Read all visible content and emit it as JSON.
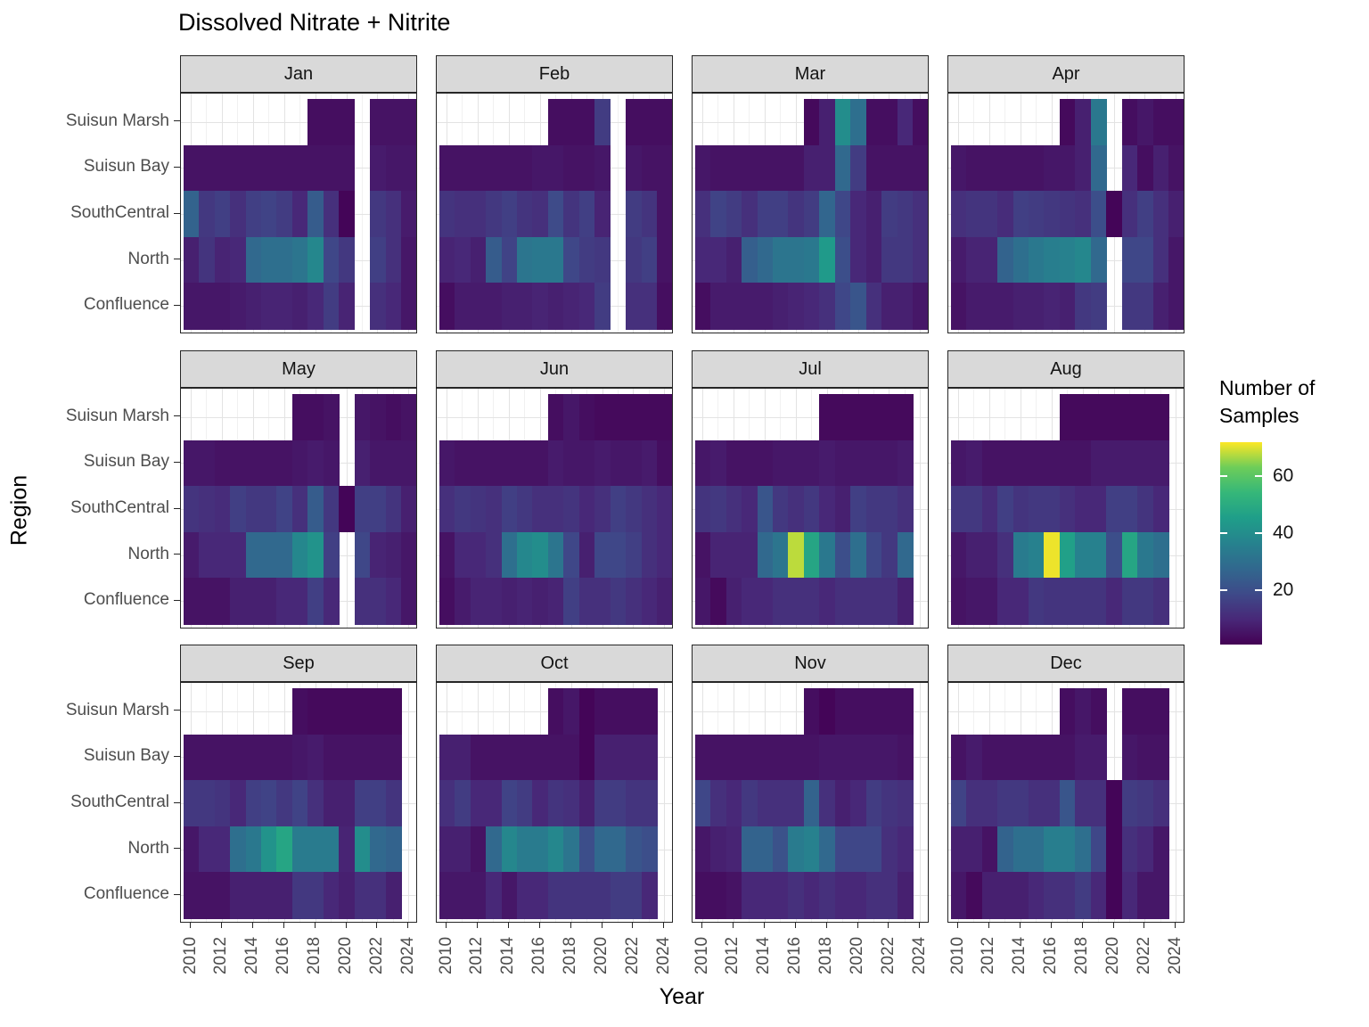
{
  "title": "Dissolved Nitrate + Nitrite",
  "axes": {
    "x_label": "Year",
    "y_label": "Region",
    "x_ticks": [
      2010,
      2012,
      2014,
      2016,
      2018,
      2020,
      2022,
      2024
    ],
    "y_categories": [
      "Suisun Marsh",
      "Suisun Bay",
      "SouthCentral",
      "North",
      "Confluence"
    ]
  },
  "legend": {
    "title_lines": [
      "Number of",
      "Samples"
    ],
    "ticks": [
      20,
      40,
      60
    ],
    "domain": [
      1,
      72
    ],
    "palette": "viridis"
  },
  "chart_data": {
    "type": "heatmap",
    "facet_by": "month",
    "title": "Dissolved Nitrate + Nitrite",
    "xlabel": "Year",
    "ylabel": "Region",
    "grid": true,
    "legend_position": "right",
    "years": [
      2010,
      2011,
      2012,
      2013,
      2014,
      2015,
      2016,
      2017,
      2018,
      2019,
      2020,
      2021,
      2022,
      2023,
      2024
    ],
    "regions": [
      "Suisun Marsh",
      "Suisun Bay",
      "SouthCentral",
      "North",
      "Confluence"
    ],
    "color_scale": {
      "palette": "viridis",
      "domain": [
        1,
        72
      ],
      "label": "Number of Samples"
    },
    "facets": [
      {
        "month": "Jan",
        "values": {
          "Suisun Marsh": [
            null,
            null,
            null,
            null,
            null,
            null,
            null,
            null,
            4,
            4,
            4,
            null,
            5,
            5,
            5
          ],
          "Suisun Bay": [
            5,
            5,
            5,
            5,
            5,
            5,
            5,
            5,
            5,
            5,
            5,
            null,
            7,
            6,
            6
          ],
          "SouthCentral": [
            26,
            14,
            16,
            12,
            16,
            17,
            15,
            10,
            24,
            12,
            2,
            null,
            14,
            12,
            7
          ],
          "North": [
            8,
            13,
            9,
            10,
            28,
            30,
            30,
            32,
            38,
            18,
            14,
            null,
            16,
            12,
            6
          ],
          "Confluence": [
            6,
            6,
            6,
            7,
            8,
            9,
            9,
            8,
            10,
            15,
            9,
            null,
            12,
            10,
            6
          ]
        }
      },
      {
        "month": "Feb",
        "values": {
          "Suisun Marsh": [
            null,
            null,
            null,
            null,
            null,
            null,
            null,
            4,
            4,
            4,
            15,
            null,
            4,
            4,
            4
          ],
          "Suisun Bay": [
            5,
            5,
            5,
            5,
            5,
            5,
            6,
            6,
            5,
            5,
            6,
            null,
            6,
            5,
            5
          ],
          "SouthCentral": [
            13,
            12,
            12,
            14,
            16,
            13,
            12,
            19,
            13,
            16,
            9,
            null,
            15,
            13,
            5
          ],
          "North": [
            9,
            10,
            8,
            24,
            17,
            32,
            33,
            33,
            18,
            15,
            14,
            null,
            14,
            16,
            5
          ],
          "Confluence": [
            4,
            7,
            7,
            7,
            8,
            8,
            9,
            8,
            9,
            10,
            15,
            null,
            12,
            12,
            4
          ]
        }
      },
      {
        "month": "Mar",
        "values": {
          "Suisun Marsh": [
            null,
            null,
            null,
            null,
            null,
            null,
            null,
            3,
            8,
            40,
            30,
            4,
            4,
            10,
            4
          ],
          "Suisun Bay": [
            6,
            5,
            5,
            5,
            5,
            5,
            5,
            8,
            8,
            28,
            15,
            5,
            5,
            5,
            5
          ],
          "SouthCentral": [
            12,
            17,
            15,
            12,
            16,
            16,
            13,
            15,
            27,
            18,
            10,
            8,
            15,
            14,
            12
          ],
          "North": [
            10,
            10,
            8,
            25,
            28,
            32,
            32,
            33,
            44,
            20,
            10,
            8,
            14,
            14,
            12
          ],
          "Confluence": [
            4,
            7,
            7,
            7,
            7,
            8,
            9,
            10,
            12,
            18,
            22,
            12,
            8,
            8,
            6
          ]
        }
      },
      {
        "month": "Apr",
        "values": {
          "Suisun Marsh": [
            null,
            null,
            null,
            null,
            null,
            null,
            null,
            3,
            8,
            33,
            null,
            4,
            6,
            4,
            4
          ],
          "Suisun Bay": [
            6,
            5,
            5,
            5,
            5,
            5,
            6,
            6,
            8,
            28,
            null,
            10,
            4,
            8,
            5
          ],
          "SouthCentral": [
            12,
            13,
            13,
            11,
            16,
            15,
            14,
            13,
            12,
            20,
            2,
            12,
            16,
            12,
            8
          ],
          "North": [
            7,
            9,
            9,
            26,
            30,
            33,
            35,
            36,
            38,
            28,
            null,
            18,
            18,
            12,
            6
          ],
          "Confluence": [
            5,
            7,
            7,
            7,
            8,
            8,
            9,
            8,
            14,
            15,
            null,
            14,
            14,
            8,
            6
          ]
        }
      },
      {
        "month": "May",
        "values": {
          "Suisun Marsh": [
            null,
            null,
            null,
            null,
            null,
            null,
            null,
            4,
            4,
            5,
            null,
            6,
            5,
            4,
            5
          ],
          "Suisun Bay": [
            6,
            6,
            5,
            5,
            5,
            5,
            5,
            6,
            7,
            6,
            null,
            8,
            6,
            6,
            6
          ],
          "SouthCentral": [
            13,
            12,
            11,
            16,
            14,
            14,
            17,
            12,
            24,
            14,
            2,
            16,
            16,
            13,
            8
          ],
          "North": [
            7,
            10,
            10,
            10,
            28,
            28,
            28,
            38,
            42,
            16,
            null,
            18,
            9,
            8,
            6
          ],
          "Confluence": [
            5,
            5,
            5,
            8,
            8,
            8,
            10,
            10,
            16,
            10,
            null,
            12,
            12,
            10,
            6
          ]
        }
      },
      {
        "month": "Jun",
        "values": {
          "Suisun Marsh": [
            null,
            null,
            null,
            null,
            null,
            null,
            null,
            4,
            6,
            4,
            3,
            3,
            3,
            3,
            3
          ],
          "Suisun Bay": [
            6,
            5,
            5,
            5,
            5,
            5,
            5,
            7,
            6,
            6,
            7,
            6,
            6,
            7,
            4
          ],
          "SouthCentral": [
            12,
            14,
            13,
            12,
            16,
            14,
            12,
            12,
            13,
            10,
            12,
            16,
            14,
            12,
            10
          ],
          "North": [
            5,
            10,
            10,
            12,
            30,
            38,
            40,
            32,
            18,
            8,
            18,
            18,
            16,
            12,
            10
          ],
          "Confluence": [
            4,
            7,
            9,
            9,
            8,
            9,
            8,
            9,
            16,
            12,
            12,
            14,
            12,
            10,
            8
          ]
        }
      },
      {
        "month": "Jul",
        "values": {
          "Suisun Marsh": [
            null,
            null,
            null,
            null,
            null,
            null,
            null,
            null,
            3,
            3,
            3,
            3,
            3,
            3,
            null
          ],
          "Suisun Bay": [
            6,
            7,
            5,
            5,
            5,
            6,
            6,
            6,
            7,
            6,
            6,
            6,
            6,
            7,
            null
          ],
          "SouthCentral": [
            13,
            14,
            12,
            10,
            22,
            14,
            12,
            14,
            10,
            8,
            16,
            14,
            14,
            12,
            null
          ],
          "North": [
            5,
            9,
            9,
            9,
            28,
            32,
            68,
            48,
            33,
            20,
            30,
            18,
            14,
            28,
            null
          ],
          "Confluence": [
            6,
            3,
            8,
            10,
            10,
            12,
            12,
            12,
            10,
            12,
            12,
            12,
            12,
            8,
            null
          ]
        }
      },
      {
        "month": "Aug",
        "values": {
          "Suisun Marsh": [
            null,
            null,
            null,
            null,
            null,
            null,
            null,
            3,
            3,
            3,
            3,
            3,
            3,
            3,
            null
          ],
          "Suisun Bay": [
            6,
            7,
            5,
            5,
            5,
            5,
            5,
            5,
            5,
            7,
            7,
            7,
            7,
            7,
            null
          ],
          "SouthCentral": [
            14,
            14,
            11,
            16,
            13,
            14,
            14,
            12,
            10,
            10,
            16,
            16,
            13,
            10,
            null
          ],
          "North": [
            6,
            8,
            8,
            12,
            34,
            36,
            71,
            46,
            36,
            36,
            20,
            48,
            33,
            30,
            null
          ],
          "Confluence": [
            5,
            6,
            6,
            10,
            10,
            14,
            13,
            13,
            13,
            13,
            10,
            14,
            14,
            12,
            null
          ]
        }
      },
      {
        "month": "Sep",
        "values": {
          "Suisun Marsh": [
            null,
            null,
            null,
            null,
            null,
            null,
            null,
            4,
            3,
            3,
            3,
            3,
            3,
            3,
            null
          ],
          "Suisun Bay": [
            5,
            5,
            5,
            5,
            5,
            5,
            5,
            6,
            7,
            5,
            5,
            5,
            5,
            5,
            null
          ],
          "SouthCentral": [
            14,
            14,
            13,
            10,
            16,
            17,
            14,
            17,
            12,
            8,
            8,
            16,
            16,
            13,
            null
          ],
          "North": [
            6,
            10,
            10,
            30,
            33,
            42,
            48,
            34,
            34,
            34,
            9,
            40,
            28,
            26,
            null
          ],
          "Confluence": [
            5,
            5,
            5,
            8,
            8,
            8,
            8,
            14,
            14,
            10,
            8,
            12,
            12,
            8,
            null
          ]
        }
      },
      {
        "month": "Oct",
        "values": {
          "Suisun Marsh": [
            null,
            null,
            null,
            null,
            null,
            null,
            null,
            4,
            6,
            2,
            4,
            4,
            4,
            4,
            null
          ],
          "Suisun Bay": [
            8,
            8,
            5,
            5,
            5,
            5,
            5,
            5,
            5,
            2,
            8,
            8,
            8,
            8,
            null
          ],
          "SouthCentral": [
            12,
            15,
            10,
            10,
            17,
            15,
            10,
            13,
            12,
            8,
            15,
            15,
            13,
            13,
            null
          ],
          "North": [
            8,
            8,
            5,
            28,
            38,
            34,
            34,
            38,
            32,
            20,
            28,
            28,
            22,
            20,
            null
          ],
          "Confluence": [
            6,
            6,
            6,
            10,
            6,
            10,
            10,
            13,
            13,
            13,
            13,
            15,
            15,
            10,
            null
          ]
        }
      },
      {
        "month": "Nov",
        "values": {
          "Suisun Marsh": [
            null,
            null,
            null,
            null,
            null,
            null,
            null,
            4,
            2,
            4,
            4,
            4,
            4,
            4,
            null
          ],
          "Suisun Bay": [
            5,
            5,
            5,
            5,
            5,
            5,
            5,
            5,
            6,
            6,
            6,
            6,
            6,
            5,
            null
          ],
          "SouthCentral": [
            18,
            12,
            10,
            14,
            12,
            12,
            12,
            26,
            12,
            8,
            10,
            15,
            13,
            12,
            null
          ],
          "North": [
            6,
            8,
            9,
            26,
            26,
            21,
            34,
            36,
            28,
            18,
            18,
            18,
            12,
            10,
            null
          ],
          "Confluence": [
            4,
            4,
            5,
            10,
            10,
            10,
            12,
            10,
            12,
            10,
            10,
            12,
            12,
            8,
            null
          ]
        }
      },
      {
        "month": "Dec",
        "values": {
          "Suisun Marsh": [
            null,
            null,
            null,
            null,
            null,
            null,
            null,
            4,
            6,
            4,
            null,
            4,
            4,
            4,
            null
          ],
          "Suisun Bay": [
            5,
            7,
            5,
            5,
            5,
            5,
            5,
            5,
            7,
            7,
            null,
            6,
            5,
            5,
            null
          ],
          "SouthCentral": [
            17,
            12,
            12,
            14,
            14,
            12,
            12,
            22,
            12,
            12,
            2,
            15,
            14,
            12,
            null
          ],
          "North": [
            8,
            8,
            5,
            26,
            30,
            30,
            35,
            35,
            30,
            18,
            2,
            12,
            10,
            6,
            null
          ],
          "Confluence": [
            6,
            3,
            8,
            8,
            8,
            10,
            12,
            12,
            15,
            10,
            2,
            10,
            6,
            6,
            null
          ]
        }
      }
    ]
  }
}
